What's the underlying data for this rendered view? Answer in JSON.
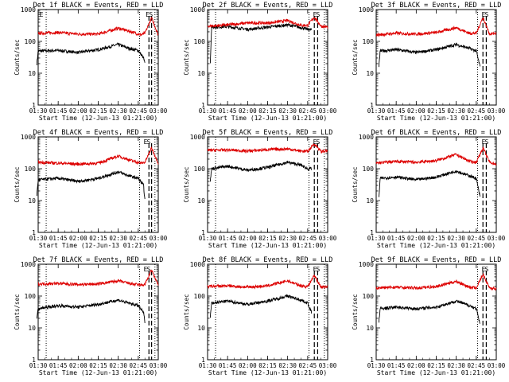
{
  "figure": {
    "x_label": "Start Time (12-Jun-13 01:21:00)",
    "y_label": "Counts/sec",
    "colors": {
      "events": "#000000",
      "lld": "#dd0000",
      "axes": "#000000",
      "background": "#ffffff"
    }
  },
  "chart_data": [
    {
      "type": "line",
      "title": "Det 1f BLACK = Events, RED = LLD",
      "xlim": [
        90,
        180
      ],
      "ylim": [
        1,
        1000
      ],
      "yscale": "log",
      "x_ticks": [
        "01:30",
        "01:45",
        "02:00",
        "02:15",
        "02:30",
        "02:45",
        "03:00"
      ],
      "y_ticks": [
        "1",
        "10",
        "100",
        "1000"
      ],
      "markers": [
        "E",
        "E",
        "S"
      ],
      "series": [
        {
          "name": "Events",
          "color": "#000000",
          "x": [
            89,
            90,
            105,
            120,
            135,
            150,
            158,
            165,
            169,
            170
          ],
          "y": [
            20,
            50,
            52,
            45,
            55,
            80,
            60,
            52,
            30,
            20
          ]
        },
        {
          "name": "LLD",
          "color": "#dd0000",
          "x": [
            90,
            105,
            120,
            135,
            150,
            160,
            167,
            170,
            175,
            180
          ],
          "y": [
            180,
            190,
            170,
            170,
            260,
            200,
            160,
            180,
            550,
            160
          ]
        }
      ],
      "vlines_dotted": [
        96,
        166,
        177.5
      ],
      "vlines_dashed": [
        173,
        175
      ]
    },
    {
      "type": "line",
      "title": "Det 2f BLACK = Events, RED = LLD",
      "xlim": [
        90,
        180
      ],
      "ylim": [
        1,
        1000
      ],
      "yscale": "log",
      "x_ticks": [
        "01:30",
        "01:45",
        "02:00",
        "02:15",
        "02:30",
        "02:45",
        "03:00"
      ],
      "y_ticks": [
        "1",
        "10",
        "100",
        "1000"
      ],
      "markers": [
        "E",
        "S"
      ],
      "series": [
        {
          "name": "Events",
          "color": "#000000",
          "x": [
            92,
            93,
            105,
            120,
            135,
            150,
            160,
            165,
            168
          ],
          "y": [
            20,
            280,
            290,
            240,
            280,
            330,
            270,
            240,
            230
          ]
        },
        {
          "name": "LLD",
          "color": "#dd0000",
          "x": [
            90,
            105,
            120,
            135,
            150,
            160,
            165,
            170,
            175,
            180
          ],
          "y": [
            300,
            330,
            380,
            380,
            450,
            320,
            320,
            580,
            300,
            280
          ]
        }
      ],
      "vlines_dotted": [
        96,
        166,
        177.5
      ],
      "vlines_dashed": [
        170,
        172.5
      ]
    },
    {
      "type": "line",
      "title": "Det 3f BLACK = Events, RED = LLD",
      "xlim": [
        90,
        180
      ],
      "ylim": [
        1,
        1000
      ],
      "yscale": "log",
      "x_ticks": [
        "01:30",
        "01:45",
        "02:00",
        "02:15",
        "02:30",
        "02:45",
        "03:00"
      ],
      "y_ticks": [
        "1",
        "10",
        "100",
        "1000"
      ],
      "markers": [
        "E",
        "S"
      ],
      "series": [
        {
          "name": "Events",
          "color": "#000000",
          "x": [
            92,
            93,
            105,
            120,
            135,
            150,
            160,
            165,
            168
          ],
          "y": [
            15,
            50,
            55,
            45,
            55,
            80,
            60,
            50,
            15
          ]
        },
        {
          "name": "LLD",
          "color": "#dd0000",
          "x": [
            90,
            105,
            120,
            135,
            150,
            160,
            165,
            170,
            175,
            180
          ],
          "y": [
            160,
            180,
            170,
            190,
            270,
            180,
            180,
            560,
            170,
            180
          ]
        }
      ],
      "vlines_dotted": [
        166
      ],
      "vlines_dashed": [
        170,
        172.5
      ]
    },
    {
      "type": "line",
      "title": "Det 4f BLACK = Events, RED = LLD",
      "xlim": [
        90,
        180
      ],
      "ylim": [
        1,
        1000
      ],
      "yscale": "log",
      "x_ticks": [
        "01:30",
        "01:45",
        "02:00",
        "02:15",
        "02:30",
        "02:45",
        "03:00"
      ],
      "y_ticks": [
        "1",
        "10",
        "100",
        "1000"
      ],
      "markers": [
        "E",
        "S"
      ],
      "series": [
        {
          "name": "Events",
          "color": "#000000",
          "x": [
            89,
            90,
            105,
            120,
            135,
            150,
            158,
            165,
            169,
            170
          ],
          "y": [
            15,
            45,
            50,
            40,
            50,
            80,
            60,
            50,
            30,
            10
          ]
        },
        {
          "name": "LLD",
          "color": "#dd0000",
          "x": [
            90,
            105,
            120,
            135,
            150,
            160,
            167,
            170,
            175,
            180
          ],
          "y": [
            160,
            150,
            140,
            150,
            250,
            180,
            150,
            160,
            450,
            150
          ]
        }
      ],
      "vlines_dotted": [
        96,
        166,
        177.5
      ],
      "vlines_dashed": [
        173,
        175
      ]
    },
    {
      "type": "line",
      "title": "Det 5f BLACK = Events, RED = LLD",
      "xlim": [
        90,
        180
      ],
      "ylim": [
        1,
        1000
      ],
      "yscale": "log",
      "x_ticks": [
        "01:30",
        "01:45",
        "02:00",
        "02:15",
        "02:30",
        "02:45",
        "03:00"
      ],
      "y_ticks": [
        "1",
        "10",
        "100",
        "1000"
      ],
      "markers": [
        "E",
        "S"
      ],
      "series": [
        {
          "name": "Events",
          "color": "#000000",
          "x": [
            92,
            93,
            105,
            120,
            135,
            150,
            160,
            165,
            168
          ],
          "y": [
            40,
            100,
            120,
            90,
            110,
            160,
            130,
            100,
            100
          ]
        },
        {
          "name": "LLD",
          "color": "#dd0000",
          "x": [
            90,
            105,
            120,
            135,
            150,
            160,
            165,
            170,
            175,
            180
          ],
          "y": [
            380,
            390,
            360,
            400,
            420,
            360,
            350,
            620,
            350,
            360
          ]
        }
      ],
      "vlines_dotted": [
        96,
        166,
        177.5
      ],
      "vlines_dashed": [
        170,
        172.5
      ]
    },
    {
      "type": "line",
      "title": "Det 6f BLACK = Events, RED = LLD",
      "xlim": [
        90,
        180
      ],
      "ylim": [
        1,
        1000
      ],
      "yscale": "log",
      "x_ticks": [
        "01:30",
        "01:45",
        "02:00",
        "02:15",
        "02:30",
        "02:45",
        "03:00"
      ],
      "y_ticks": [
        "1",
        "10",
        "100",
        "1000"
      ],
      "markers": [
        "E",
        "S"
      ],
      "series": [
        {
          "name": "Events",
          "color": "#000000",
          "x": [
            92,
            93,
            105,
            120,
            135,
            150,
            160,
            165,
            168
          ],
          "y": [
            12,
            50,
            55,
            45,
            55,
            85,
            60,
            50,
            12
          ]
        },
        {
          "name": "LLD",
          "color": "#dd0000",
          "x": [
            90,
            105,
            120,
            135,
            150,
            160,
            165,
            170,
            175,
            180
          ],
          "y": [
            150,
            170,
            160,
            180,
            280,
            170,
            160,
            450,
            160,
            140
          ]
        }
      ],
      "vlines_dotted": [
        166
      ],
      "vlines_dashed": [
        170,
        172.5
      ]
    },
    {
      "type": "line",
      "title": "Det 7f BLACK = Events, RED = LLD",
      "xlim": [
        90,
        180
      ],
      "ylim": [
        1,
        1000
      ],
      "yscale": "log",
      "x_ticks": [
        "01:30",
        "01:45",
        "02:00",
        "02:15",
        "02:30",
        "02:45",
        "03:00"
      ],
      "y_ticks": [
        "1",
        "10",
        "100",
        "1000"
      ],
      "markers": [
        "E",
        "S"
      ],
      "series": [
        {
          "name": "Events",
          "color": "#000000",
          "x": [
            89,
            90,
            105,
            120,
            135,
            150,
            158,
            165,
            169,
            170
          ],
          "y": [
            20,
            40,
            50,
            45,
            55,
            75,
            60,
            50,
            30,
            15
          ]
        },
        {
          "name": "LLD",
          "color": "#dd0000",
          "x": [
            90,
            105,
            120,
            135,
            150,
            160,
            167,
            170,
            175,
            180
          ],
          "y": [
            240,
            250,
            230,
            240,
            300,
            240,
            220,
            230,
            650,
            220
          ]
        }
      ],
      "vlines_dotted": [
        96,
        166,
        177.5
      ],
      "vlines_dashed": [
        173,
        175
      ]
    },
    {
      "type": "line",
      "title": "Det 8f BLACK = Events, RED = LLD",
      "xlim": [
        90,
        180
      ],
      "ylim": [
        1,
        1000
      ],
      "yscale": "log",
      "x_ticks": [
        "01:30",
        "01:45",
        "02:00",
        "02:15",
        "02:30",
        "02:45",
        "03:00"
      ],
      "y_ticks": [
        "1",
        "10",
        "100",
        "1000"
      ],
      "markers": [
        "E",
        "S"
      ],
      "series": [
        {
          "name": "Events",
          "color": "#000000",
          "x": [
            92,
            93,
            105,
            120,
            135,
            150,
            160,
            165,
            168
          ],
          "y": [
            20,
            60,
            70,
            55,
            70,
            100,
            75,
            60,
            30
          ]
        },
        {
          "name": "LLD",
          "color": "#dd0000",
          "x": [
            90,
            105,
            120,
            135,
            150,
            160,
            165,
            170,
            175,
            180
          ],
          "y": [
            200,
            210,
            190,
            210,
            300,
            210,
            200,
            450,
            190,
            200
          ]
        }
      ],
      "vlines_dotted": [
        96,
        166,
        177.5
      ],
      "vlines_dashed": [
        170,
        172.5
      ]
    },
    {
      "type": "line",
      "title": "Det 9f BLACK = Events, RED = LLD",
      "xlim": [
        90,
        180
      ],
      "ylim": [
        1,
        1000
      ],
      "yscale": "log",
      "x_ticks": [
        "01:30",
        "01:45",
        "02:00",
        "02:15",
        "02:30",
        "02:45",
        "03:00"
      ],
      "y_ticks": [
        "1",
        "10",
        "100",
        "1000"
      ],
      "markers": [
        "E",
        "S"
      ],
      "series": [
        {
          "name": "Events",
          "color": "#000000",
          "x": [
            92,
            93,
            105,
            120,
            135,
            150,
            160,
            165,
            168
          ],
          "y": [
            15,
            40,
            45,
            40,
            45,
            70,
            50,
            40,
            12
          ]
        },
        {
          "name": "LLD",
          "color": "#dd0000",
          "x": [
            90,
            105,
            120,
            135,
            150,
            160,
            165,
            170,
            175,
            180
          ],
          "y": [
            180,
            190,
            180,
            200,
            290,
            190,
            180,
            480,
            180,
            170
          ]
        }
      ],
      "vlines_dotted": [
        166
      ],
      "vlines_dashed": [
        170,
        172.5
      ]
    }
  ]
}
